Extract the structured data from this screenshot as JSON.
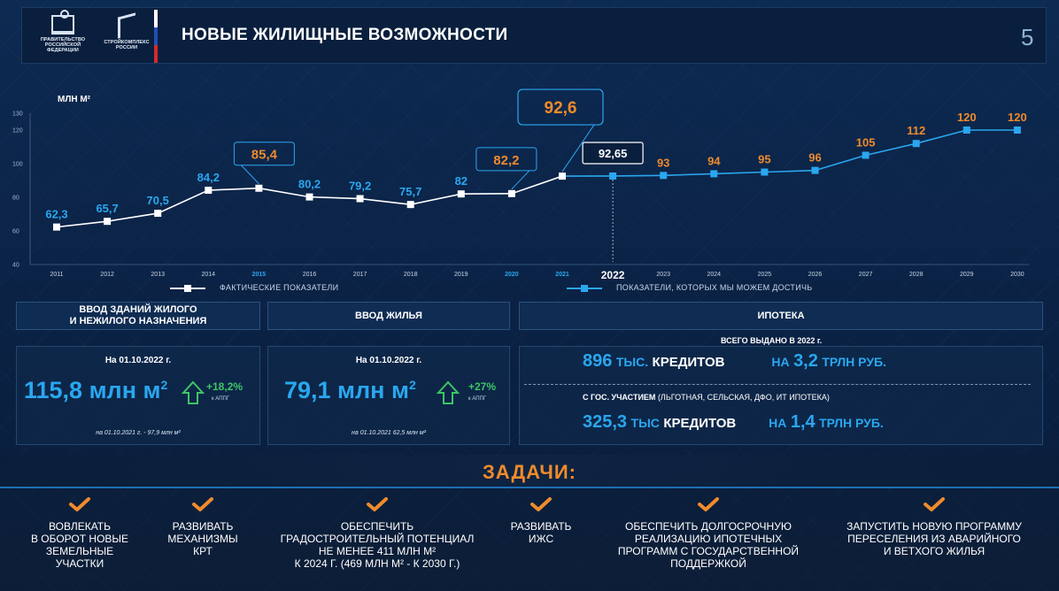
{
  "header": {
    "logo1_text": "ПРАВИТЕЛЬСТВО РОССИЙСКОЙ ФЕДЕРАЦИИ",
    "logo2_text": "СТРОЙКОМПЛЕКС РОССИИ",
    "title": "НОВЫЕ ЖИЛИЩНЫЕ ВОЗМОЖНОСТИ",
    "page_number": "5"
  },
  "chart_data": {
    "type": "line",
    "ylabel": "МЛН М²",
    "ylim": [
      40,
      130
    ],
    "yticks": [
      40,
      60,
      80,
      100,
      120,
      130
    ],
    "x": [
      "2011",
      "2012",
      "2013",
      "2014",
      "2015",
      "2016",
      "2017",
      "2018",
      "2019",
      "2020",
      "2021",
      "2022",
      "2023",
      "2024",
      "2025",
      "2026",
      "2027",
      "2028",
      "2029",
      "2030"
    ],
    "highlight_years": [
      "2015",
      "2020",
      "2021"
    ],
    "emphasized_year": "2022",
    "series": [
      {
        "name": "ФАКТИЧЕСКИЕ ПОКАЗАТЕЛИ",
        "color": "#ffffff",
        "x": [
          "2011",
          "2012",
          "2013",
          "2014",
          "2015",
          "2016",
          "2017",
          "2018",
          "2019",
          "2020",
          "2021"
        ],
        "values": [
          62.3,
          65.7,
          70.5,
          84.2,
          85.4,
          80.2,
          79.2,
          75.7,
          82,
          82.2,
          92.6
        ],
        "labels": [
          "62,3",
          "65,7",
          "70,5",
          "84,2",
          "85,4",
          "80,2",
          "79,2",
          "75,7",
          "82",
          "82,2",
          "92,6"
        ]
      },
      {
        "name": "ПОКАЗАТЕЛИ, КОТОРЫХ МЫ МОЖЕМ ДОСТИЧЬ",
        "color": "#2aa7ef",
        "x": [
          "2021",
          "2022",
          "2023",
          "2024",
          "2025",
          "2026",
          "2027",
          "2028",
          "2029",
          "2030"
        ],
        "values": [
          92.6,
          92.65,
          93,
          94,
          95,
          96,
          105,
          112,
          120,
          120
        ],
        "labels": [
          "",
          "92,65",
          "93",
          "94",
          "95",
          "96",
          "105",
          "112",
          "120",
          "120"
        ]
      }
    ]
  },
  "legend": {
    "actual": "ФАКТИЧЕСКИЕ ПОКАЗАТЕЛИ",
    "target": "ПОКАЗАТЕЛИ, КОТОРЫХ МЫ МОЖЕМ ДОСТИЧЬ"
  },
  "panels": {
    "buildings": {
      "title": "ВВОД ЗДАНИЙ ЖИЛОГО\nИ НЕЖИЛОГО НАЗНАЧЕНИЯ",
      "date": "На 01.10.2022 г.",
      "value": "115,8 млн м",
      "sup": "2",
      "pct": "+18,2%",
      "pct_sub": "к АППГ",
      "foot": "на 01.10.2021 г. - 97,9 млн м²"
    },
    "housing": {
      "title": "ВВОД ЖИЛЬЯ",
      "date": "На 01.10.2022 г.",
      "value": "79,1 млн м",
      "sup": "2",
      "pct": "+27%",
      "pct_sub": "к АППГ",
      "foot": "на 01.10.2021 62,5 млн м²"
    },
    "mortgage": {
      "title": "ИПОТЕКА",
      "issued_title": "ВСЕГО ВЫДАНО В 2022 г.",
      "row1_num": "896",
      "row1_unit": "ТЫС.",
      "row1_word": "КРЕДИТОВ",
      "row1_on": "НА",
      "row1_amount": "3,2",
      "row1_amount_unit": "ТРЛН РУБ.",
      "sub_bold": "С ГОС. УЧАСТИЕМ",
      "sub_rest": " (ЛЬГОТНАЯ, СЕЛЬСКАЯ, ДФО, ИТ ИПОТЕКА)",
      "row2_num": "325,3",
      "row2_unit": "ТЫС",
      "row2_word": "КРЕДИТОВ",
      "row2_on": "НА",
      "row2_amount": "1,4",
      "row2_amount_unit": "ТРЛН РУБ."
    }
  },
  "tasks": {
    "title": "ЗАДАЧИ:",
    "items": [
      "ВОВЛЕКАТЬ\nВ ОБОРОТ НОВЫЕ\nЗЕМЕЛЬНЫЕ\nУЧАСТКИ",
      "РАЗВИВАТЬ\nМЕХАНИЗМЫ\nКРТ",
      "ОБЕСПЕЧИТЬ\nГРАДОСТРОИТЕЛЬНЫЙ ПОТЕНЦИАЛ\nНЕ МЕНЕЕ 411 МЛН М²\nК 2024 Г. (469 МЛН М² - К 2030 Г.)",
      "РАЗВИВАТЬ\nИЖС",
      "ОБЕСПЕЧИТЬ ДОЛГОСРОЧНУЮ\nРЕАЛИЗАЦИЮ ИПОТЕЧНЫХ\nПРОГРАММ С ГОСУДАРСТВЕННОЙ\nПОДДЕРЖКОЙ",
      "ЗАПУСТИТЬ НОВУЮ ПРОГРАММУ\nПЕРЕСЕЛЕНИЯ ИЗ АВАРИЙНОГО\nИ ВЕТХОГО ЖИЛЬЯ"
    ]
  },
  "colors": {
    "accent_blue": "#2aa7ef",
    "accent_orange": "#f08b2c",
    "accent_green": "#3fc466",
    "flag_white": "#ffffff",
    "flag_blue": "#1f4fb5",
    "flag_red": "#d52b2b"
  }
}
